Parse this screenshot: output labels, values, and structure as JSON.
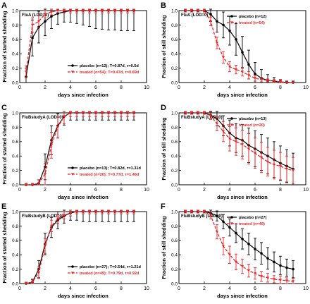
{
  "colors": {
    "placebo": "#000000",
    "treated": "#e8262a",
    "ref_line": "#999999"
  },
  "x_axis": {
    "label": "days since infection",
    "range": [
      0,
      10
    ],
    "ticks": [
      "0",
      "2",
      "4",
      "6",
      "8",
      "10"
    ]
  },
  "y_axis": {
    "range": [
      0,
      1
    ],
    "ticks": [
      "0.0",
      "0.2",
      "0.4",
      "0.6",
      "0.8",
      "1.0"
    ],
    "label_started": "Fraction of started shedding",
    "label_still": "Fraction of still shedding"
  },
  "chart_data": [
    {
      "panel": "A",
      "type": "line",
      "title": "FluA (LOD=0)",
      "ylabel": "Fraction of started shedding",
      "xlabel": "days since infection",
      "xlim": [
        0,
        10
      ],
      "ylim": [
        0,
        1
      ],
      "legend_position": "bottom-right",
      "series": [
        {
          "name": "placebo (n=12); T=0.87d, τ=0.5d",
          "x": [
            0.5,
            1,
            1.5,
            2,
            2.5,
            3,
            3.5,
            4,
            4.5,
            5,
            5.5,
            6,
            6.5,
            7,
            7.5,
            8,
            8.5,
            9
          ],
          "y": [
            0.08,
            0.62,
            0.77,
            0.85,
            0.92,
            0.96,
            0.98,
            1,
            1,
            1,
            1,
            1,
            1,
            1,
            1,
            1,
            1,
            1
          ],
          "err": [
            0.12,
            0.25,
            0.22,
            0.2,
            0.17,
            0.15,
            0.14,
            0.16,
            0.18,
            0.2,
            0.22,
            0.25,
            0.26,
            0.27,
            0.27,
            0.28,
            0.28,
            0.28
          ]
        },
        {
          "name": "treated (n=54); T=0.47d, τ=0.69d",
          "x": [
            0.5,
            1,
            1.5,
            2,
            2.5,
            3,
            3.5,
            4,
            4.5,
            5,
            5.5,
            6,
            6.5,
            7,
            7.5,
            8,
            8.5,
            9
          ],
          "y": [
            0.15,
            0.8,
            0.85,
            0.95,
            0.98,
            1,
            1,
            1,
            1,
            1,
            1,
            1,
            1,
            1,
            1,
            1,
            1,
            1
          ],
          "err": [
            0.08,
            0.1,
            0.08,
            0.05,
            0.04,
            0.03,
            0.03,
            0.03,
            0.03,
            0.03,
            0.03,
            0.03,
            0.03,
            0.03,
            0.03,
            0.03,
            0.03,
            0.03
          ]
        }
      ]
    },
    {
      "panel": "B",
      "type": "line",
      "title": "FluA (LOD=0)",
      "ylabel": "Fraction of still shedding",
      "xlabel": "days since infection",
      "xlim": [
        0,
        10
      ],
      "ylim": [
        0,
        1
      ],
      "legend_position": "top-right",
      "series": [
        {
          "name": "placebo (n=12)",
          "x": [
            0.5,
            1,
            1.5,
            2,
            2.5,
            3,
            3.5,
            4,
            4.5,
            5,
            5.5,
            6,
            6.5,
            7,
            7.5,
            8,
            8.5,
            9
          ],
          "y": [
            1,
            1,
            1,
            1,
            0.95,
            0.85,
            0.8,
            0.72,
            0.6,
            0.42,
            0.25,
            0.12,
            0.06,
            0.03,
            0.02,
            0.01,
            0,
            0
          ],
          "err": [
            0.02,
            0.02,
            0.02,
            0.02,
            0.1,
            0.15,
            0.18,
            0.2,
            0.22,
            0.22,
            0.2,
            0.16,
            0.12,
            0.08,
            0.05,
            0.03,
            0.02,
            0.02
          ]
        },
        {
          "name": "treated (n=54)",
          "x": [
            0.5,
            1,
            1.5,
            2,
            2.5,
            3,
            3.5,
            4,
            4.5,
            5,
            5.5,
            6,
            6.5,
            7,
            7.5,
            8,
            8.5,
            9
          ],
          "y": [
            1,
            1,
            1,
            1,
            0.85,
            0.55,
            0.35,
            0.22,
            0.18,
            0.15,
            0.1,
            0.06,
            0.04,
            0.03,
            0.02,
            0.01,
            0,
            0
          ],
          "err": [
            0.02,
            0.02,
            0.02,
            0.02,
            0.06,
            0.08,
            0.08,
            0.07,
            0.06,
            0.06,
            0.05,
            0.04,
            0.03,
            0.02,
            0.02,
            0.02,
            0.01,
            0.01
          ]
        }
      ]
    },
    {
      "panel": "C",
      "type": "line",
      "title": "FluBstudyA (LOD=0)",
      "ylabel": "Fraction of started shedding",
      "xlabel": "days since infection",
      "xlim": [
        0,
        10
      ],
      "ylim": [
        0,
        1
      ],
      "legend_position": "bottom-right",
      "series": [
        {
          "name": "placebo (n=13); T=0.82d, τ=1.31d",
          "x": [
            0.5,
            1,
            1.5,
            2,
            2.5,
            3,
            3.5,
            4,
            4.5,
            5,
            5.5,
            6,
            6.5,
            7,
            7.5,
            8,
            8.5,
            9
          ],
          "y": [
            0,
            0,
            0.02,
            0.25,
            0.62,
            0.82,
            0.95,
            1,
            1,
            1,
            1,
            1,
            1,
            1,
            1,
            1,
            1,
            1
          ],
          "err": [
            0.02,
            0.02,
            0.05,
            0.18,
            0.2,
            0.17,
            0.12,
            0.1,
            0.1,
            0.1,
            0.1,
            0.1,
            0.1,
            0.1,
            0.1,
            0.1,
            0.1,
            0.1
          ]
        },
        {
          "name": "treated (n=20); T=0.77d, τ=1.46d",
          "x": [
            0.5,
            1,
            1.5,
            2,
            2.5,
            3,
            3.5,
            4,
            4.5,
            5,
            5.5,
            6,
            6.5,
            7,
            7.5,
            8,
            8.5,
            9
          ],
          "y": [
            0,
            0,
            0.02,
            0.15,
            0.55,
            0.8,
            0.95,
            1,
            1,
            1,
            1,
            1,
            1,
            1,
            1,
            1,
            1,
            1
          ],
          "err": [
            0.02,
            0.02,
            0.05,
            0.15,
            0.18,
            0.15,
            0.1,
            0.05,
            0.05,
            0.05,
            0.05,
            0.05,
            0.05,
            0.05,
            0.05,
            0.05,
            0.05,
            0.05
          ]
        }
      ]
    },
    {
      "panel": "D",
      "type": "line",
      "title": "FluBstudyA (LOD=0)",
      "ylabel": "Fraction of still shedding",
      "xlabel": "days since infection",
      "xlim": [
        0,
        10
      ],
      "ylim": [
        0,
        1
      ],
      "legend_position": "top-right",
      "series": [
        {
          "name": "placebo (n=13)",
          "x": [
            0.5,
            1,
            1.5,
            2,
            2.5,
            3,
            3.5,
            4,
            4.5,
            5,
            5.5,
            6,
            6.5,
            7,
            7.5,
            8,
            8.5,
            9
          ],
          "y": [
            1,
            1,
            1,
            1,
            0.97,
            0.92,
            0.82,
            0.72,
            0.65,
            0.62,
            0.55,
            0.5,
            0.45,
            0.4,
            0.35,
            0.3,
            0.26,
            0.22
          ],
          "err": [
            0.02,
            0.02,
            0.02,
            0.02,
            0.06,
            0.1,
            0.14,
            0.18,
            0.2,
            0.22,
            0.24,
            0.25,
            0.25,
            0.25,
            0.25,
            0.24,
            0.23,
            0.22
          ]
        },
        {
          "name": "treated (n=20)",
          "x": [
            0.5,
            1,
            1.5,
            2,
            2.5,
            3,
            3.5,
            4,
            4.5,
            5,
            5.5,
            6,
            6.5,
            7,
            7.5,
            8,
            8.5,
            9
          ],
          "y": [
            1,
            1,
            1,
            1,
            0.96,
            0.85,
            0.74,
            0.64,
            0.6,
            0.56,
            0.5,
            0.44,
            0.38,
            0.32,
            0.28,
            0.26,
            0.22,
            0.2
          ],
          "err": [
            0.02,
            0.02,
            0.02,
            0.02,
            0.05,
            0.1,
            0.14,
            0.17,
            0.19,
            0.2,
            0.21,
            0.21,
            0.21,
            0.2,
            0.2,
            0.19,
            0.18,
            0.18
          ]
        }
      ]
    },
    {
      "panel": "E",
      "type": "line",
      "title": "FluBstudyB (LOD=0)",
      "ylabel": "Fraction of started shedding",
      "xlabel": "days since infection",
      "xlim": [
        0,
        10
      ],
      "ylim": [
        0,
        1
      ],
      "legend_position": "bottom-right",
      "series": [
        {
          "name": "placebo (n=27); T=0.54d, τ=1.21d",
          "x": [
            0.5,
            1,
            1.5,
            2,
            2.5,
            3,
            3.5,
            4,
            4.5,
            5,
            5.5,
            6,
            6.5,
            7,
            7.5,
            8,
            8.5,
            9
          ],
          "y": [
            0,
            0.02,
            0.2,
            0.55,
            0.78,
            0.88,
            0.94,
            0.98,
            1,
            1,
            1,
            1,
            1,
            1,
            1,
            1,
            1,
            1
          ],
          "err": [
            0.02,
            0.04,
            0.12,
            0.15,
            0.14,
            0.12,
            0.1,
            0.1,
            0.12,
            0.14,
            0.14,
            0.14,
            0.14,
            0.14,
            0.14,
            0.14,
            0.14,
            0.14
          ]
        },
        {
          "name": "treated (n=49); T=0.79d, τ=0.92d",
          "x": [
            0.5,
            1,
            1.5,
            2,
            2.5,
            3,
            3.5,
            4,
            4.5,
            5,
            5.5,
            6,
            6.5,
            7,
            7.5,
            8,
            8.5,
            9
          ],
          "y": [
            0,
            0.02,
            0.15,
            0.52,
            0.8,
            0.9,
            0.95,
            0.98,
            1,
            1,
            1,
            1,
            1,
            1,
            1,
            1,
            1,
            1
          ],
          "err": [
            0.02,
            0.03,
            0.08,
            0.1,
            0.08,
            0.06,
            0.05,
            0.04,
            0.03,
            0.03,
            0.03,
            0.03,
            0.03,
            0.03,
            0.03,
            0.03,
            0.03,
            0.03
          ]
        }
      ]
    },
    {
      "panel": "F",
      "type": "line",
      "title": "FluBstudyB (LOD=0)",
      "ylabel": "Fraction of still shedding",
      "xlabel": "days since infection",
      "xlim": [
        0,
        10
      ],
      "ylim": [
        0,
        1
      ],
      "legend_position": "top-right",
      "series": [
        {
          "name": "placebo (n=27)",
          "x": [
            0.5,
            1,
            1.5,
            2,
            2.5,
            3,
            3.5,
            4,
            4.5,
            5,
            5.5,
            6,
            6.5,
            7,
            7.5,
            8,
            8.5,
            9
          ],
          "y": [
            1,
            1,
            1,
            1,
            0.98,
            0.94,
            0.86,
            0.78,
            0.7,
            0.62,
            0.55,
            0.48,
            0.42,
            0.35,
            0.3,
            0.25,
            0.22,
            0.2
          ],
          "err": [
            0.02,
            0.02,
            0.02,
            0.02,
            0.04,
            0.07,
            0.1,
            0.12,
            0.13,
            0.14,
            0.15,
            0.15,
            0.15,
            0.15,
            0.14,
            0.13,
            0.12,
            0.12
          ]
        },
        {
          "name": "treated (n=49)",
          "x": [
            0.5,
            1,
            1.5,
            2,
            2.5,
            3,
            3.5,
            4,
            4.5,
            5,
            5.5,
            6,
            6.5,
            7,
            7.5,
            8,
            8.5,
            9
          ],
          "y": [
            1,
            1,
            1,
            1,
            0.95,
            0.72,
            0.52,
            0.4,
            0.3,
            0.24,
            0.18,
            0.14,
            0.1,
            0.08,
            0.06,
            0.05,
            0.04,
            0.03
          ],
          "err": [
            0.02,
            0.02,
            0.02,
            0.02,
            0.05,
            0.1,
            0.12,
            0.12,
            0.11,
            0.1,
            0.09,
            0.08,
            0.07,
            0.06,
            0.05,
            0.05,
            0.04,
            0.04
          ]
        }
      ]
    }
  ]
}
